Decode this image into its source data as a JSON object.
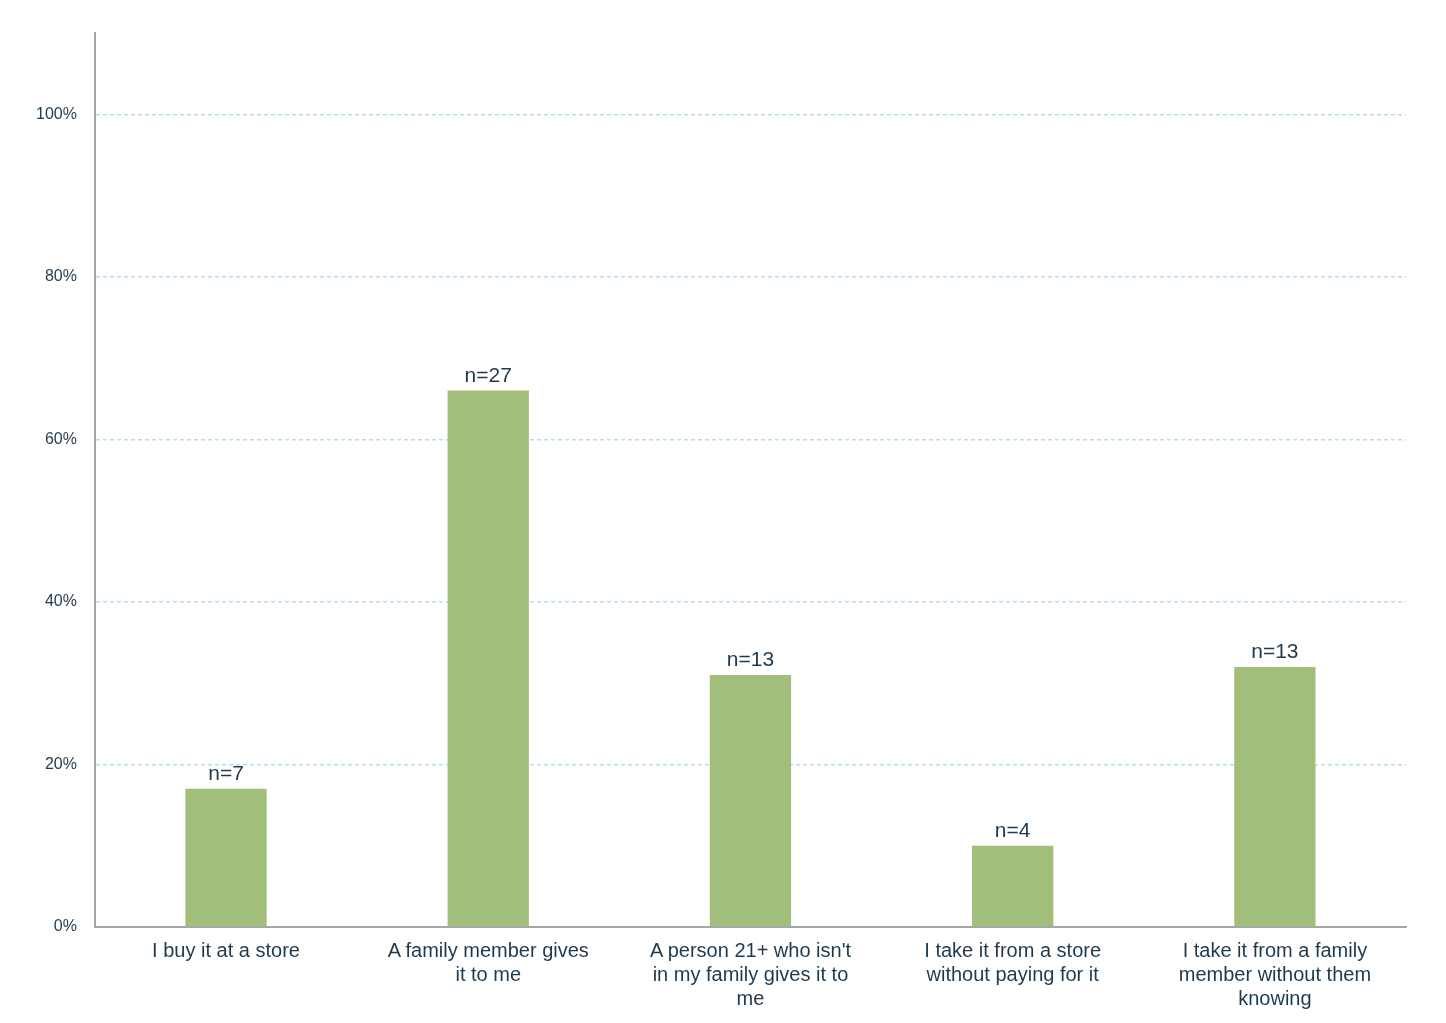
{
  "chart_data": {
    "type": "bar",
    "categories": [
      "I buy it at a store",
      "A family member gives it to me",
      "A person 21+ who isn't in my family gives it to me",
      "I take it from a store without paying for it",
      "I take it from a family member without them knowing"
    ],
    "values": [
      17,
      66,
      31,
      10,
      32
    ],
    "annotations": [
      {
        "text": "n=7",
        "x": "I buy it at a store",
        "y": 17
      },
      {
        "text": "n=27",
        "x": "A family member gives it to me",
        "y": 66
      },
      {
        "text": "n=13",
        "x": "A person 21+ who isn't in my family gives it to me",
        "y": 31
      },
      {
        "text": "n=4",
        "x": "I take it from a store without paying for it",
        "y": 10
      },
      {
        "text": "n=13",
        "x": "I take it from a family member without them knowing",
        "y": 32
      }
    ],
    "color": "#a1bf7b",
    "ylim": [
      0,
      110
    ],
    "yticks": [
      {
        "value": 0,
        "label": "0%"
      },
      {
        "value": 20,
        "label": "20%"
      },
      {
        "value": 40,
        "label": "40%"
      },
      {
        "value": 60,
        "label": "60%"
      },
      {
        "value": 80,
        "label": "80%"
      },
      {
        "value": 100,
        "label": "100%"
      }
    ],
    "grid": "y"
  }
}
